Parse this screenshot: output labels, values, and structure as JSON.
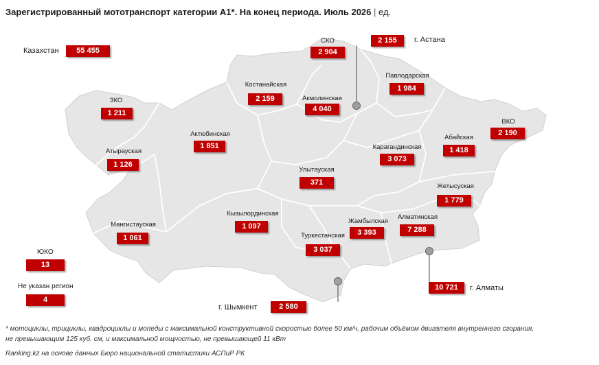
{
  "title": {
    "main": "Зарегистрированный мототранспорт категории A1*. На конец периода. Июль 2026",
    "separator": "|",
    "unit": "ед."
  },
  "country": {
    "label": "Казахстан",
    "value": "55 455"
  },
  "regions": {
    "sko": {
      "label": "СКО",
      "value": "2 904"
    },
    "astana": {
      "label": "г. Астана",
      "value": "2 155"
    },
    "kostanay": {
      "label": "Костанайская",
      "value": "2 159"
    },
    "akmola": {
      "label": "Акмолинская",
      "value": "4 040"
    },
    "pavlodar": {
      "label": "Павлодарская",
      "value": "1 984"
    },
    "zko": {
      "label": "ЗКО",
      "value": "1 211"
    },
    "aktobe": {
      "label": "Актюбинская",
      "value": "1 851"
    },
    "karaganda": {
      "label": "Карагандинская",
      "value": "3 073"
    },
    "abai": {
      "label": "Абайская",
      "value": "1 418"
    },
    "vko": {
      "label": "ВКО",
      "value": "2 190"
    },
    "atyrau": {
      "label": "Атырауская",
      "value": "1 126"
    },
    "ulytau": {
      "label": "Улытауская",
      "value": "371"
    },
    "zhetysu": {
      "label": "Жетысуская",
      "value": "1 779"
    },
    "kyzylorda": {
      "label": "Кызылординская",
      "value": "1 097"
    },
    "zhambyl": {
      "label": "Жамбылская",
      "value": "3 393"
    },
    "almaty_reg": {
      "label": "Алматинская",
      "value": "7 288"
    },
    "mangystau": {
      "label": "Мангистауская",
      "value": "1 061"
    },
    "turkestan": {
      "label": "Туркестанская",
      "value": "3 037"
    },
    "almaty_city": {
      "label": "г. Алматы",
      "value": "10 721"
    },
    "shymkent": {
      "label": "г. Шымкент",
      "value": "2 580"
    },
    "yuko": {
      "label": "ЮКО",
      "value": "13"
    },
    "unknown": {
      "label": "Не указан регион",
      "value": "4"
    }
  },
  "colors": {
    "accent": "#c00000",
    "land": "#e6e6e6",
    "border": "#ffffff"
  },
  "footnote": {
    "line1": "* мотоциклы, трициклы, квадроциклы и мопеды с максимальной конструктивной скоростью более 50 км/ч, рабочим объёмом двигателя внутреннего сгорания,",
    "line2": "не превышающим 125 куб. см, и максимальной мощностью, не превышающей 11 кВт"
  },
  "source": "Ranking.kz на основе данных Бюро национальной статистики АСПиР РК"
}
